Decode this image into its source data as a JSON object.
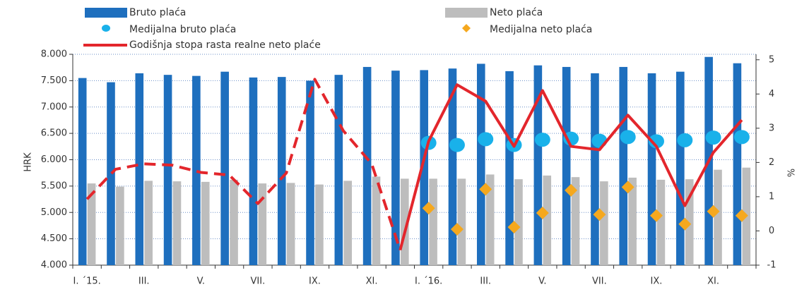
{
  "chart_data": {
    "type": "bar",
    "categories": [
      "I. ´15.",
      null,
      "III.",
      null,
      "V.",
      null,
      "VII.",
      null,
      "IX.",
      null,
      "XI.",
      null,
      "I. ´16.",
      null,
      "III.",
      null,
      "V.",
      null,
      "VII.",
      null,
      "IX.",
      null,
      "XI.",
      null
    ],
    "series": [
      {
        "name": "Bruto plaća",
        "type": "bar",
        "color": "#1e6fbe",
        "values": [
          7550,
          7470,
          7640,
          7610,
          7590,
          7670,
          7560,
          7570,
          7500,
          7610,
          7760,
          7690,
          7700,
          7730,
          7820,
          7680,
          7790,
          7760,
          7640,
          7760,
          7640,
          7670,
          7950,
          7830
        ]
      },
      {
        "name": "Neto plaća",
        "type": "bar",
        "color": "#bdbdbd",
        "values": [
          5550,
          5490,
          5600,
          5590,
          5580,
          5620,
          5550,
          5560,
          5530,
          5600,
          5680,
          5640,
          5640,
          5640,
          5720,
          5630,
          5700,
          5670,
          5590,
          5660,
          5620,
          5630,
          5810,
          5850
        ]
      },
      {
        "name": "Medijalna bruto plaća",
        "type": "dot",
        "color": "#19b1ea",
        "values": [
          null,
          null,
          null,
          null,
          null,
          null,
          null,
          null,
          null,
          null,
          null,
          null,
          6320,
          6280,
          6390,
          6280,
          6380,
          6400,
          6360,
          6430,
          6350,
          6370,
          6420,
          6430
        ]
      },
      {
        "name": "Medijalna neto plaća",
        "type": "diamond",
        "color": "#f5a81e",
        "values": [
          null,
          null,
          null,
          null,
          null,
          null,
          null,
          null,
          null,
          null,
          null,
          null,
          5080,
          4680,
          5440,
          4720,
          4990,
          5420,
          4960,
          5480,
          4940,
          4780,
          5020,
          4940
        ]
      },
      {
        "name": "Godišnja stopa rasta realne neto plaće",
        "type": "line",
        "color": "#e3262c",
        "axis": "y2",
        "dashed_until": 11,
        "values": [
          0.93,
          1.8,
          1.96,
          1.92,
          1.71,
          1.63,
          0.8,
          1.69,
          4.43,
          2.93,
          1.96,
          -0.56,
          2.62,
          4.27,
          3.79,
          2.47,
          4.1,
          2.47,
          2.37,
          3.38,
          2.47,
          0.74,
          2.29,
          3.24
        ]
      }
    ],
    "ylabel": "HRK",
    "y2label": "%",
    "ylim": [
      4000,
      8000
    ],
    "yticks": [
      {
        "value": 4000,
        "label": "4.000"
      },
      {
        "value": 4500,
        "label": "4.500"
      },
      {
        "value": 5000,
        "label": "5.000"
      },
      {
        "value": 5500,
        "label": "5.500"
      },
      {
        "value": 6000,
        "label": "6.000"
      },
      {
        "value": 6500,
        "label": "6.500"
      },
      {
        "value": 7000,
        "label": "7.000"
      },
      {
        "value": 7500,
        "label": "7.500"
      },
      {
        "value": 8000,
        "label": "8.000"
      }
    ],
    "y2lim": [
      -1,
      5.16
    ],
    "y2ticks": [
      -1,
      0,
      1,
      2,
      3,
      4,
      5
    ],
    "grid": true
  }
}
